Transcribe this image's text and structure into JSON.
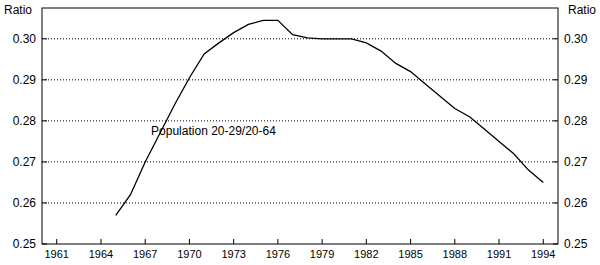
{
  "chart_data": {
    "type": "line",
    "ylabel": "Ratio",
    "annotation": "Population 20-29/20-64",
    "x": [
      1965,
      1966,
      1967,
      1968,
      1969,
      1970,
      1971,
      1972,
      1973,
      1974,
      1975,
      1976,
      1977,
      1978,
      1979,
      1980,
      1981,
      1982,
      1983,
      1984,
      1985,
      1986,
      1987,
      1988,
      1989,
      1990,
      1991,
      1992,
      1993,
      1994
    ],
    "series": [
      {
        "name": "Population 20-29/20-64",
        "color": "#000000",
        "values": [
          0.257,
          0.262,
          0.27,
          0.277,
          0.284,
          0.2905,
          0.2963,
          0.299,
          0.3015,
          0.3035,
          0.3045,
          0.3045,
          0.301,
          0.3002,
          0.3,
          0.3,
          0.3,
          0.299,
          0.297,
          0.294,
          0.292,
          0.289,
          0.286,
          0.283,
          0.281,
          0.278,
          0.275,
          0.272,
          0.268,
          0.265
        ]
      }
    ],
    "xlim": [
      1960,
      1995
    ],
    "xticks": [
      1961,
      1964,
      1967,
      1970,
      1973,
      1976,
      1979,
      1982,
      1985,
      1988,
      1991,
      1994
    ],
    "ylim": [
      0.25,
      0.3075
    ],
    "yticks": [
      0.25,
      0.26,
      0.27,
      0.28,
      0.29,
      {
        "value": 0.3,
        "label": "0.30"
      }
    ],
    "grid": true
  }
}
